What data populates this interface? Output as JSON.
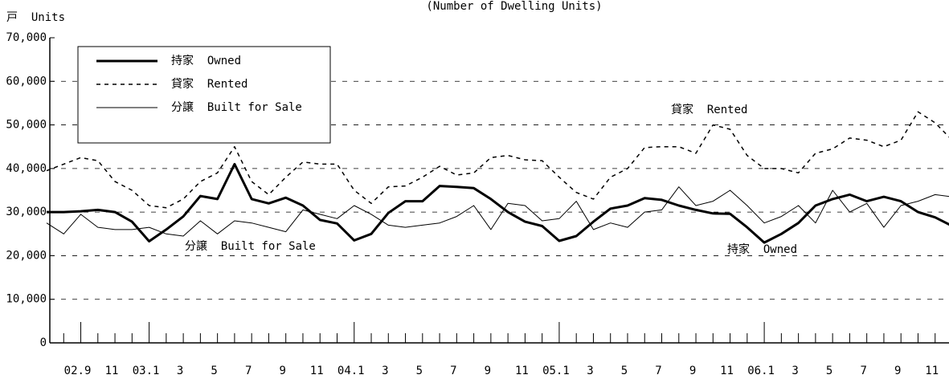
{
  "chart_data": {
    "type": "line",
    "title": "(Number of Dwelling Units)",
    "y_label": "戸  Units",
    "categories": [
      null,
      null,
      "02.9",
      null,
      "11",
      null,
      "03.1",
      null,
      "3",
      null,
      "5",
      null,
      "7",
      null,
      "9",
      null,
      "11",
      null,
      "04.1",
      null,
      "3",
      null,
      "5",
      null,
      "7",
      null,
      "9",
      null,
      "11",
      null,
      "05.1",
      null,
      "3",
      null,
      "5",
      null,
      "7",
      null,
      "9",
      null,
      "11",
      null,
      "06.1",
      null,
      "3",
      null,
      "5",
      null,
      "7",
      null,
      "9",
      null,
      "11",
      null
    ],
    "series": [
      {
        "name": "持家  Owned",
        "color": "#000000",
        "style": "thick",
        "values": [
          30000,
          30000,
          30200,
          30500,
          30000,
          27800,
          23300,
          26000,
          29000,
          33700,
          33000,
          41000,
          33000,
          32000,
          33300,
          31500,
          28200,
          27400,
          23500,
          25000,
          29800,
          32500,
          32500,
          36000,
          35800,
          35500,
          33000,
          30000,
          27800,
          26800,
          23400,
          24500,
          27800,
          30800,
          31500,
          33200,
          32800,
          31500,
          30500,
          29700,
          29600,
          26500,
          23000,
          25000,
          27500,
          31500,
          33000,
          34000,
          32500,
          33500,
          32500,
          30000,
          28800,
          26800
        ]
      },
      {
        "name": "貸家  Rented",
        "color": "#000000",
        "style": "dashed",
        "values": [
          39500,
          41000,
          42500,
          41800,
          37000,
          35000,
          31500,
          31000,
          33000,
          37000,
          39000,
          45000,
          37000,
          34000,
          38000,
          41500,
          41000,
          41000,
          35000,
          32000,
          35800,
          36000,
          38000,
          40500,
          38500,
          39000,
          42500,
          43000,
          42000,
          41800,
          38000,
          34500,
          33000,
          38000,
          40000,
          44800,
          45000,
          45000,
          43500,
          50000,
          49000,
          43000,
          40000,
          40000,
          39000,
          43500,
          44500,
          47000,
          46500,
          45000,
          46500,
          53000,
          50500,
          46500
        ]
      },
      {
        "name": "分譲  Built for Sale",
        "color": "#000000",
        "style": "thin",
        "values": [
          27500,
          25000,
          29500,
          26500,
          26000,
          26000,
          26500,
          25000,
          24500,
          28000,
          25000,
          28000,
          27500,
          26500,
          25500,
          30500,
          29500,
          28500,
          31500,
          29500,
          27000,
          26500,
          27000,
          27500,
          29000,
          31500,
          26000,
          32000,
          31500,
          28000,
          28500,
          32500,
          26000,
          27500,
          26500,
          30000,
          30500,
          35800,
          31500,
          32500,
          35000,
          31500,
          27500,
          29000,
          31500,
          27500,
          35000,
          30000,
          32000,
          26500,
          31500,
          32500,
          34000,
          33500
        ]
      }
    ],
    "annotations": [
      {
        "text": "貸家  Rented",
        "series": 1
      },
      {
        "text": "分譲  Built for Sale",
        "series": 2
      },
      {
        "text": "持家  Owned",
        "series": 0
      }
    ],
    "ylim": [
      0,
      70000
    ],
    "yticks": [
      0,
      {
        "value": 10000,
        "label": "10,000"
      },
      {
        "value": 20000,
        "label": "20,000"
      },
      {
        "value": 30000,
        "label": "30,000"
      },
      {
        "value": 40000,
        "label": "40,000"
      },
      {
        "value": 50000,
        "label": "50,000"
      },
      {
        "value": 60000,
        "label": "60,000"
      },
      {
        "value": 70000,
        "label": "70,000"
      }
    ],
    "grid": true,
    "legend": "upper left"
  }
}
